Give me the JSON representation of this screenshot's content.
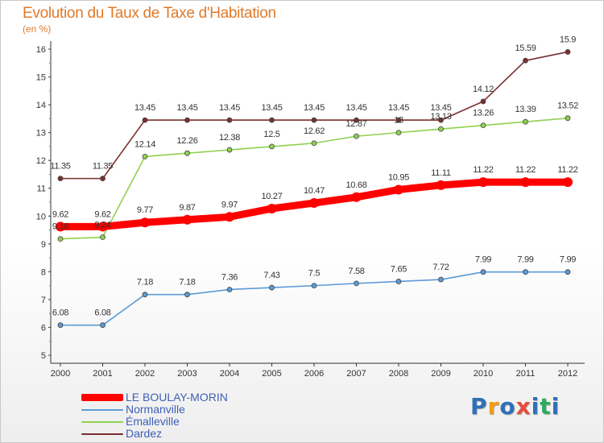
{
  "chart_data": {
    "type": "line",
    "title": "Evolution du Taux de Taxe d'Habitation",
    "subtitle": "(en %)",
    "x": [
      "2000",
      "2001",
      "2002",
      "2003",
      "2004",
      "2005",
      "2006",
      "2007",
      "2008",
      "2009",
      "2010",
      "2011",
      "2012"
    ],
    "ylim": [
      5,
      16
    ],
    "yticks": [
      "5",
      "6",
      "7",
      "8",
      "9",
      "10",
      "11",
      "12",
      "13",
      "14",
      "15",
      "16"
    ],
    "grid": false,
    "legend_position": "bottom-left",
    "series": [
      {
        "name": "LE BOULAY-MORIN",
        "color": "#ff0000",
        "emphasis": true,
        "values": [
          9.62,
          9.62,
          9.77,
          9.87,
          9.97,
          10.27,
          10.47,
          10.68,
          10.95,
          11.11,
          11.22,
          11.22,
          11.22
        ],
        "labels": [
          "9.62",
          "9.62",
          "9.77",
          "9.87",
          "9.97",
          "10.27",
          "10.47",
          "10.68",
          "10.95",
          "11.11",
          "11.22",
          "11.22",
          "11.22"
        ]
      },
      {
        "name": "Normanville",
        "color": "#5b9bd5",
        "emphasis": false,
        "values": [
          6.08,
          6.08,
          7.18,
          7.18,
          7.36,
          7.43,
          7.5,
          7.58,
          7.65,
          7.72,
          7.99,
          7.99,
          7.99
        ],
        "labels": [
          "6.08",
          "6.08",
          "7.18",
          "7.18",
          "7.36",
          "7.43",
          "7.5",
          "7.58",
          "7.65",
          "7.72",
          "7.99",
          "7.99",
          "7.99"
        ]
      },
      {
        "name": "Émalleville",
        "color": "#8fd14f",
        "emphasis": false,
        "values": [
          9.18,
          9.24,
          12.14,
          12.26,
          12.38,
          12.5,
          12.62,
          12.87,
          13,
          13.13,
          13.26,
          13.39,
          13.52
        ],
        "labels": [
          "9.18",
          "9.24",
          "12.14",
          "12.26",
          "12.38",
          "12.5",
          "12.62",
          "12.87",
          "13",
          "13.13",
          "13.26",
          "13.39",
          "13.52"
        ]
      },
      {
        "name": "Dardez",
        "color": "#7b2f2f",
        "emphasis": false,
        "values": [
          11.35,
          11.35,
          13.45,
          13.45,
          13.45,
          13.45,
          13.45,
          13.45,
          13.45,
          13.45,
          14.12,
          15.59,
          15.9
        ],
        "labels": [
          "11.35",
          "11.35",
          "13.45",
          "13.45",
          "13.45",
          "13.45",
          "13.45",
          "13.45",
          "13.45",
          "13.45",
          "14.12",
          "15.59",
          "15.9"
        ]
      }
    ]
  },
  "brand": {
    "letters": [
      "P",
      "r",
      "o",
      "x",
      "i",
      "t",
      "i"
    ],
    "colors": [
      "#2f6fb7",
      "#f39c12",
      "#2f6fb7",
      "#e74c3c",
      "#2f6fb7",
      "#27ae60",
      "#2f6fb7"
    ]
  }
}
